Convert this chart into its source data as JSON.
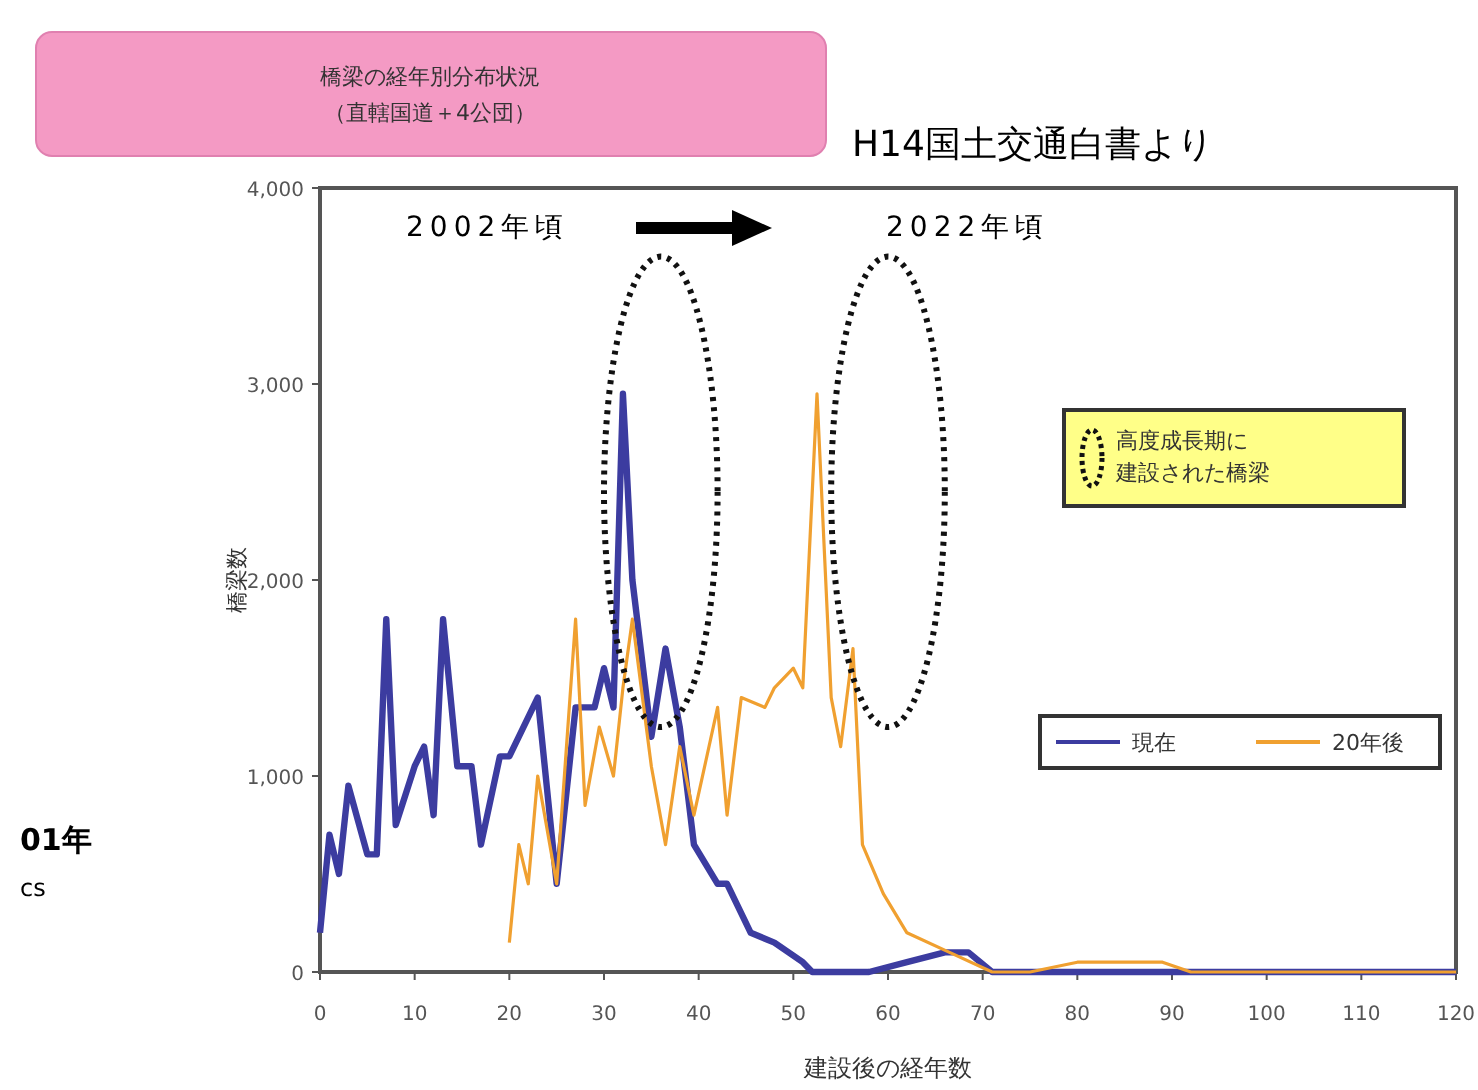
{
  "chart_data": {
    "type": "line",
    "title": "橋梁の経年別分布状況",
    "subtitle": "（直轄国道＋4公団）",
    "xlabel": "建設後の経年数",
    "ylabel": "橋梁数",
    "annotations": [
      "H14国土交通白書より",
      "2002年頃",
      "2022年頃",
      "高度成長期に建設された橋梁",
      "01年",
      "cs"
    ],
    "xlim": [
      0,
      120
    ],
    "xticks": [
      0,
      10,
      20,
      30,
      40,
      50,
      60,
      70,
      80,
      90,
      100,
      110,
      120
    ],
    "ylim": [
      0,
      4000
    ],
    "yticks": [
      {
        "value": 0,
        "label": "0"
      },
      {
        "value": 1000,
        "label": "1,000"
      },
      {
        "value": 2000,
        "label": "2,000"
      },
      {
        "value": 3000,
        "label": "3,000"
      },
      {
        "value": 4000,
        "label": "4,000"
      }
    ],
    "grid": false,
    "legend": "right",
    "marker": "none",
    "line_style": "solid",
    "series": [
      {
        "name": "現在",
        "color": "#3c3ca0",
        "x": [
          0,
          1,
          2,
          3,
          5,
          6,
          7,
          8,
          10,
          11,
          12,
          13,
          14.5,
          16,
          17,
          19,
          20,
          23,
          25,
          27,
          29,
          30,
          31,
          32,
          33,
          35,
          36.5,
          38,
          39.5,
          42,
          43,
          45.5,
          48,
          51,
          52,
          58,
          62,
          66,
          68.5,
          71,
          73,
          78,
          84,
          90,
          92,
          120
        ],
        "values": [
          200,
          700,
          500,
          950,
          600,
          600,
          1800,
          750,
          1050,
          1150,
          800,
          1800,
          1050,
          1050,
          650,
          1100,
          1100,
          1400,
          450,
          1350,
          1350,
          1550,
          1350,
          2950,
          2000,
          1200,
          1650,
          1250,
          650,
          450,
          450,
          200,
          150,
          50,
          0,
          0,
          50,
          100,
          100,
          0,
          0,
          0,
          0,
          0,
          0,
          0
        ]
      },
      {
        "name": "20年後",
        "color": "#f0a030",
        "x": [
          20,
          21,
          22,
          23,
          25,
          27,
          28,
          29.5,
          31,
          32,
          33,
          35,
          36.5,
          38,
          39.5,
          42,
          43,
          44.5,
          47,
          48,
          50,
          51,
          52.5,
          54,
          55,
          56.3,
          57.3,
          59.5,
          62,
          66.5,
          71,
          75,
          80,
          85,
          89,
          92,
          120
        ],
        "values": [
          150,
          650,
          450,
          1000,
          450,
          1800,
          850,
          1250,
          1000,
          1450,
          1800,
          1050,
          650,
          1150,
          800,
          1350,
          800,
          1400,
          1350,
          1450,
          1550,
          1450,
          2950,
          1400,
          1150,
          1650,
          650,
          400,
          200,
          100,
          0,
          0,
          50,
          50,
          50,
          0,
          0
        ]
      }
    ]
  }
}
